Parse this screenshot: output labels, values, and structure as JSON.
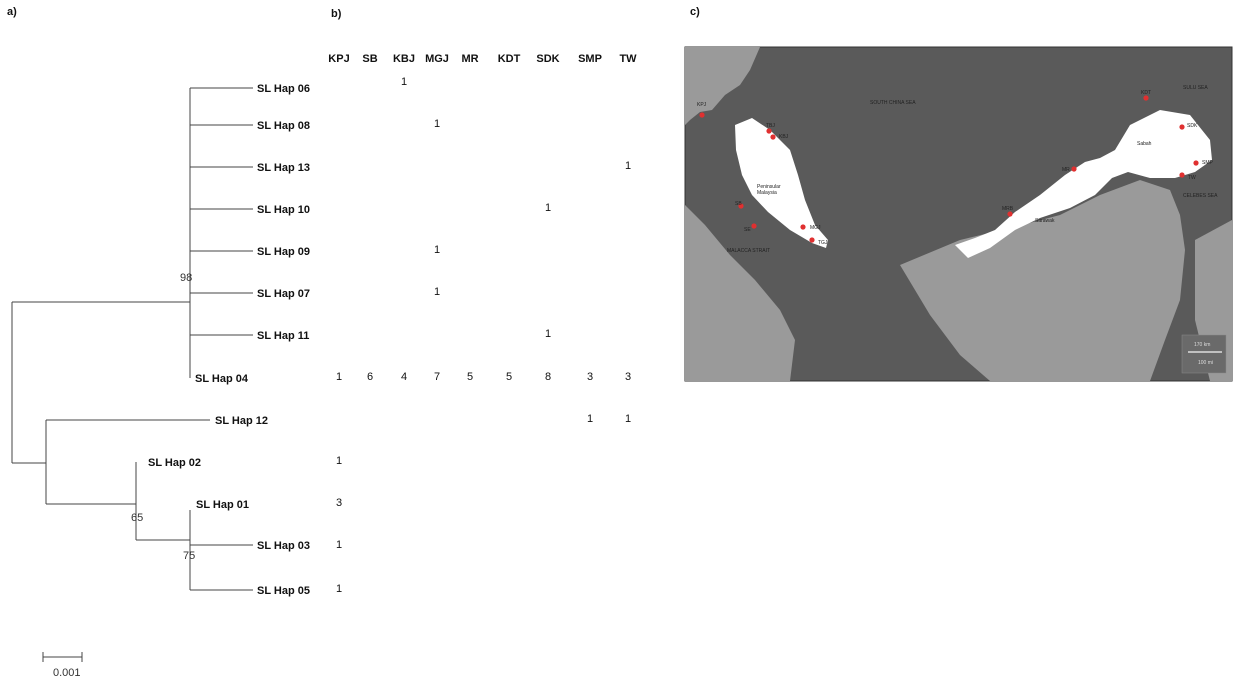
{
  "panels": {
    "a": "a)",
    "b": "b)",
    "c": "c)"
  },
  "tree": {
    "haplotypes": [
      "SL Hap 06",
      "SL Hap 08",
      "SL Hap 13",
      "SL Hap 10",
      "SL Hap 09",
      "SL Hap 07",
      "SL Hap 11",
      "SL Hap 04",
      "SL Hap 12",
      "SL Hap 02",
      "SL Hap 01",
      "SL Hap 03",
      "SL Hap 05"
    ],
    "bootstrap": [
      "98",
      "65",
      "75"
    ],
    "scale_bar": "0.001"
  },
  "table": {
    "columns": [
      "KPJ",
      "SB",
      "KBJ",
      "MGJ",
      "MR",
      "KDT",
      "SDK",
      "SMP",
      "TW"
    ],
    "rows": [
      [
        "",
        "",
        "1",
        "",
        "",
        "",
        "",
        "",
        ""
      ],
      [
        "",
        "",
        "",
        "1",
        "",
        "",
        "",
        "",
        ""
      ],
      [
        "",
        "",
        "",
        "",
        "",
        "",
        "",
        "",
        "1"
      ],
      [
        "",
        "",
        "",
        "",
        "",
        "",
        "1",
        "",
        ""
      ],
      [
        "",
        "",
        "",
        "1",
        "",
        "",
        "",
        "",
        ""
      ],
      [
        "",
        "",
        "",
        "1",
        "",
        "",
        "",
        "",
        ""
      ],
      [
        "",
        "",
        "",
        "",
        "",
        "",
        "1",
        "",
        ""
      ],
      [
        "1",
        "6",
        "4",
        "7",
        "5",
        "5",
        "8",
        "3",
        "3"
      ],
      [
        "",
        "",
        "",
        "",
        "",
        "",
        "",
        "1",
        "1"
      ],
      [
        "1",
        "",
        "",
        "",
        "",
        "",
        "",
        "",
        ""
      ],
      [
        "3",
        "",
        "",
        "",
        "",
        "",
        "",
        "",
        ""
      ],
      [
        "1",
        "",
        "",
        "",
        "",
        "",
        "",
        "",
        ""
      ],
      [
        "1",
        "",
        "",
        "",
        "",
        "",
        "",
        "",
        ""
      ]
    ]
  },
  "map": {
    "labels": {
      "south_china_sea": "SOUTH CHINA SEA",
      "sulu_sea": "SULU SEA",
      "celebes_sea": "CELEBES SEA",
      "malacca_strait": "MALACCA STRAIT",
      "peninsular": "Peninsular",
      "malaysia": "Malaysia",
      "sabah": "Sabah",
      "sarawak": "Sarawak",
      "scale_km": "170 km",
      "scale_mi": "100 mi"
    },
    "sites": [
      "KPJ",
      "TBJ",
      "KBJ",
      "SB",
      "SE",
      "MGJ",
      "TGJ",
      "MRB",
      "MR",
      "KDT",
      "SDK",
      "SMP",
      "TW"
    ],
    "colors": {
      "sea": "#5a5a5a",
      "land_other": "#9a9a9a",
      "malaysia": "#ffffff",
      "site_marker": "#e03030"
    }
  }
}
